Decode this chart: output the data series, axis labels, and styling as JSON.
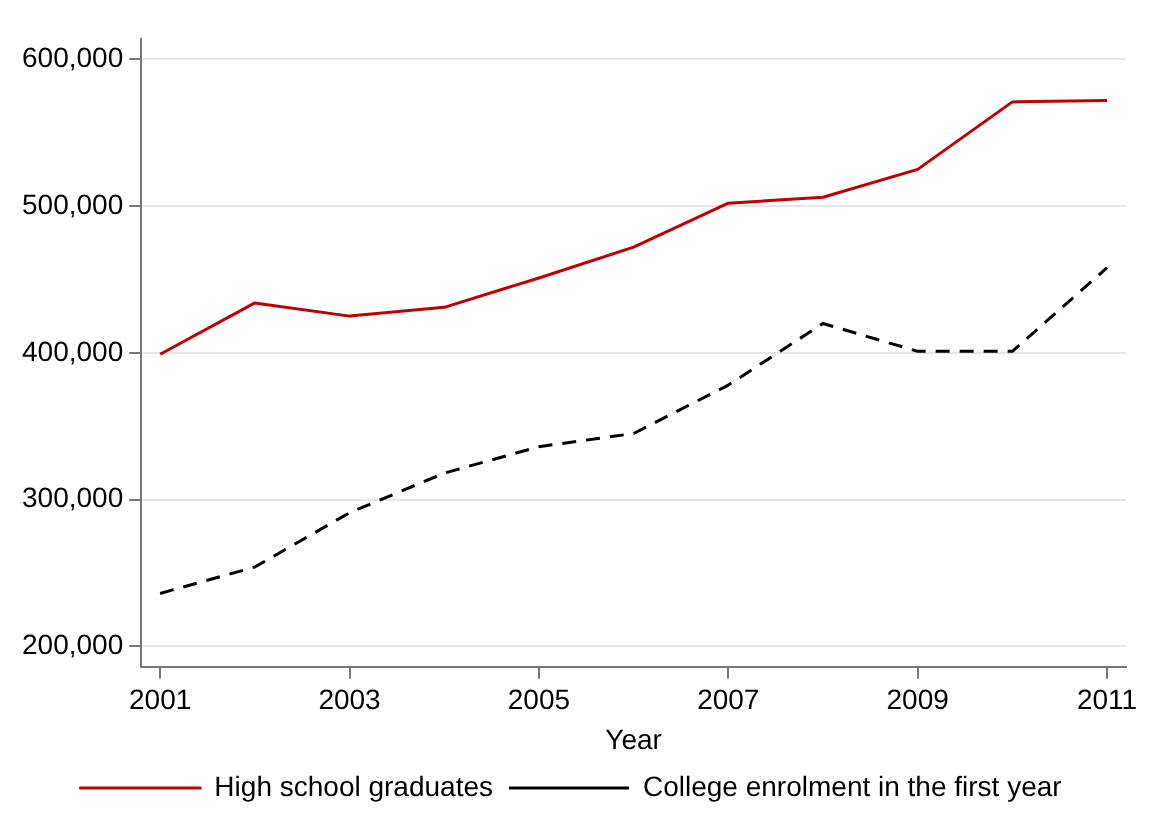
{
  "chart_data": {
    "type": "line",
    "xlabel": "Year",
    "x": [
      2001,
      2002,
      2003,
      2004,
      2005,
      2006,
      2007,
      2008,
      2009,
      2010,
      2011
    ],
    "series": [
      {
        "name": "High school graduates",
        "color": "#c00000",
        "line_style": "solid",
        "values": [
          399000,
          434000,
          425000,
          431000,
          451000,
          472000,
          502000,
          506000,
          525000,
          571000,
          572000
        ]
      },
      {
        "name": "College enrolment in the first year",
        "color": "#000000",
        "line_style": "dashed",
        "values": [
          236000,
          254000,
          291000,
          318000,
          336000,
          345000,
          378000,
          420000,
          401000,
          401000,
          458000
        ]
      }
    ],
    "xlim": [
      2000.8,
      2011.2
    ],
    "xticks": [
      2001,
      2003,
      2005,
      2007,
      2009,
      2011
    ],
    "ylim": [
      186000,
      614000
    ],
    "yticks": [
      {
        "value": 200000,
        "label": "200,000"
      },
      {
        "value": 300000,
        "label": "300,000"
      },
      {
        "value": 400000,
        "label": "400,000"
      },
      {
        "value": 500000,
        "label": "500,000"
      },
      {
        "value": 600000,
        "label": "600,000"
      }
    ],
    "grid": "y",
    "legend": "bottom",
    "marker": "none"
  }
}
